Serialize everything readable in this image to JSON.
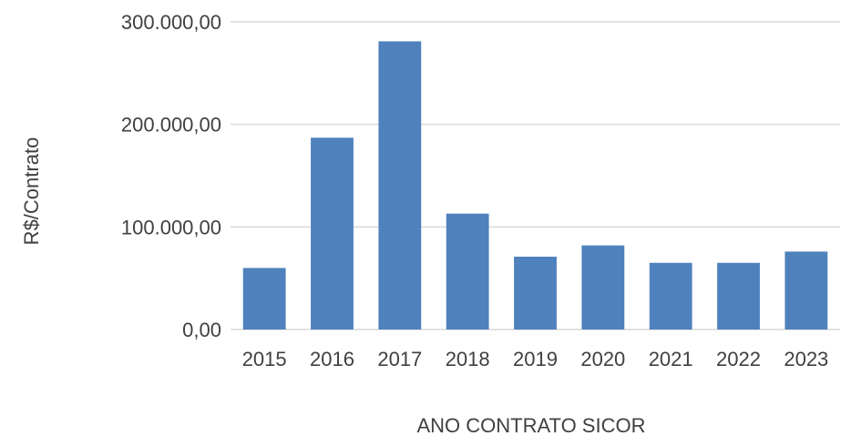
{
  "chart_data": {
    "type": "bar",
    "categories": [
      "2015",
      "2016",
      "2017",
      "2018",
      "2019",
      "2020",
      "2021",
      "2022",
      "2023"
    ],
    "values": [
      60000,
      187000,
      281000,
      113000,
      71000,
      82000,
      65000,
      65000,
      76000
    ],
    "ytick_labels": [
      "0,00",
      "100.000,00",
      "200.000,00",
      "300.000,00"
    ],
    "yticks": [
      0,
      100000,
      200000,
      300000
    ],
    "xlabel": "ANO CONTRATO SICOR",
    "ylabel": "R$/Contrato",
    "ylim": [
      0,
      300000
    ],
    "grid": true,
    "legend": "none",
    "colors": {
      "bar": "#4f81bd",
      "grid": "#d9d9d9",
      "text": "#404040"
    }
  }
}
